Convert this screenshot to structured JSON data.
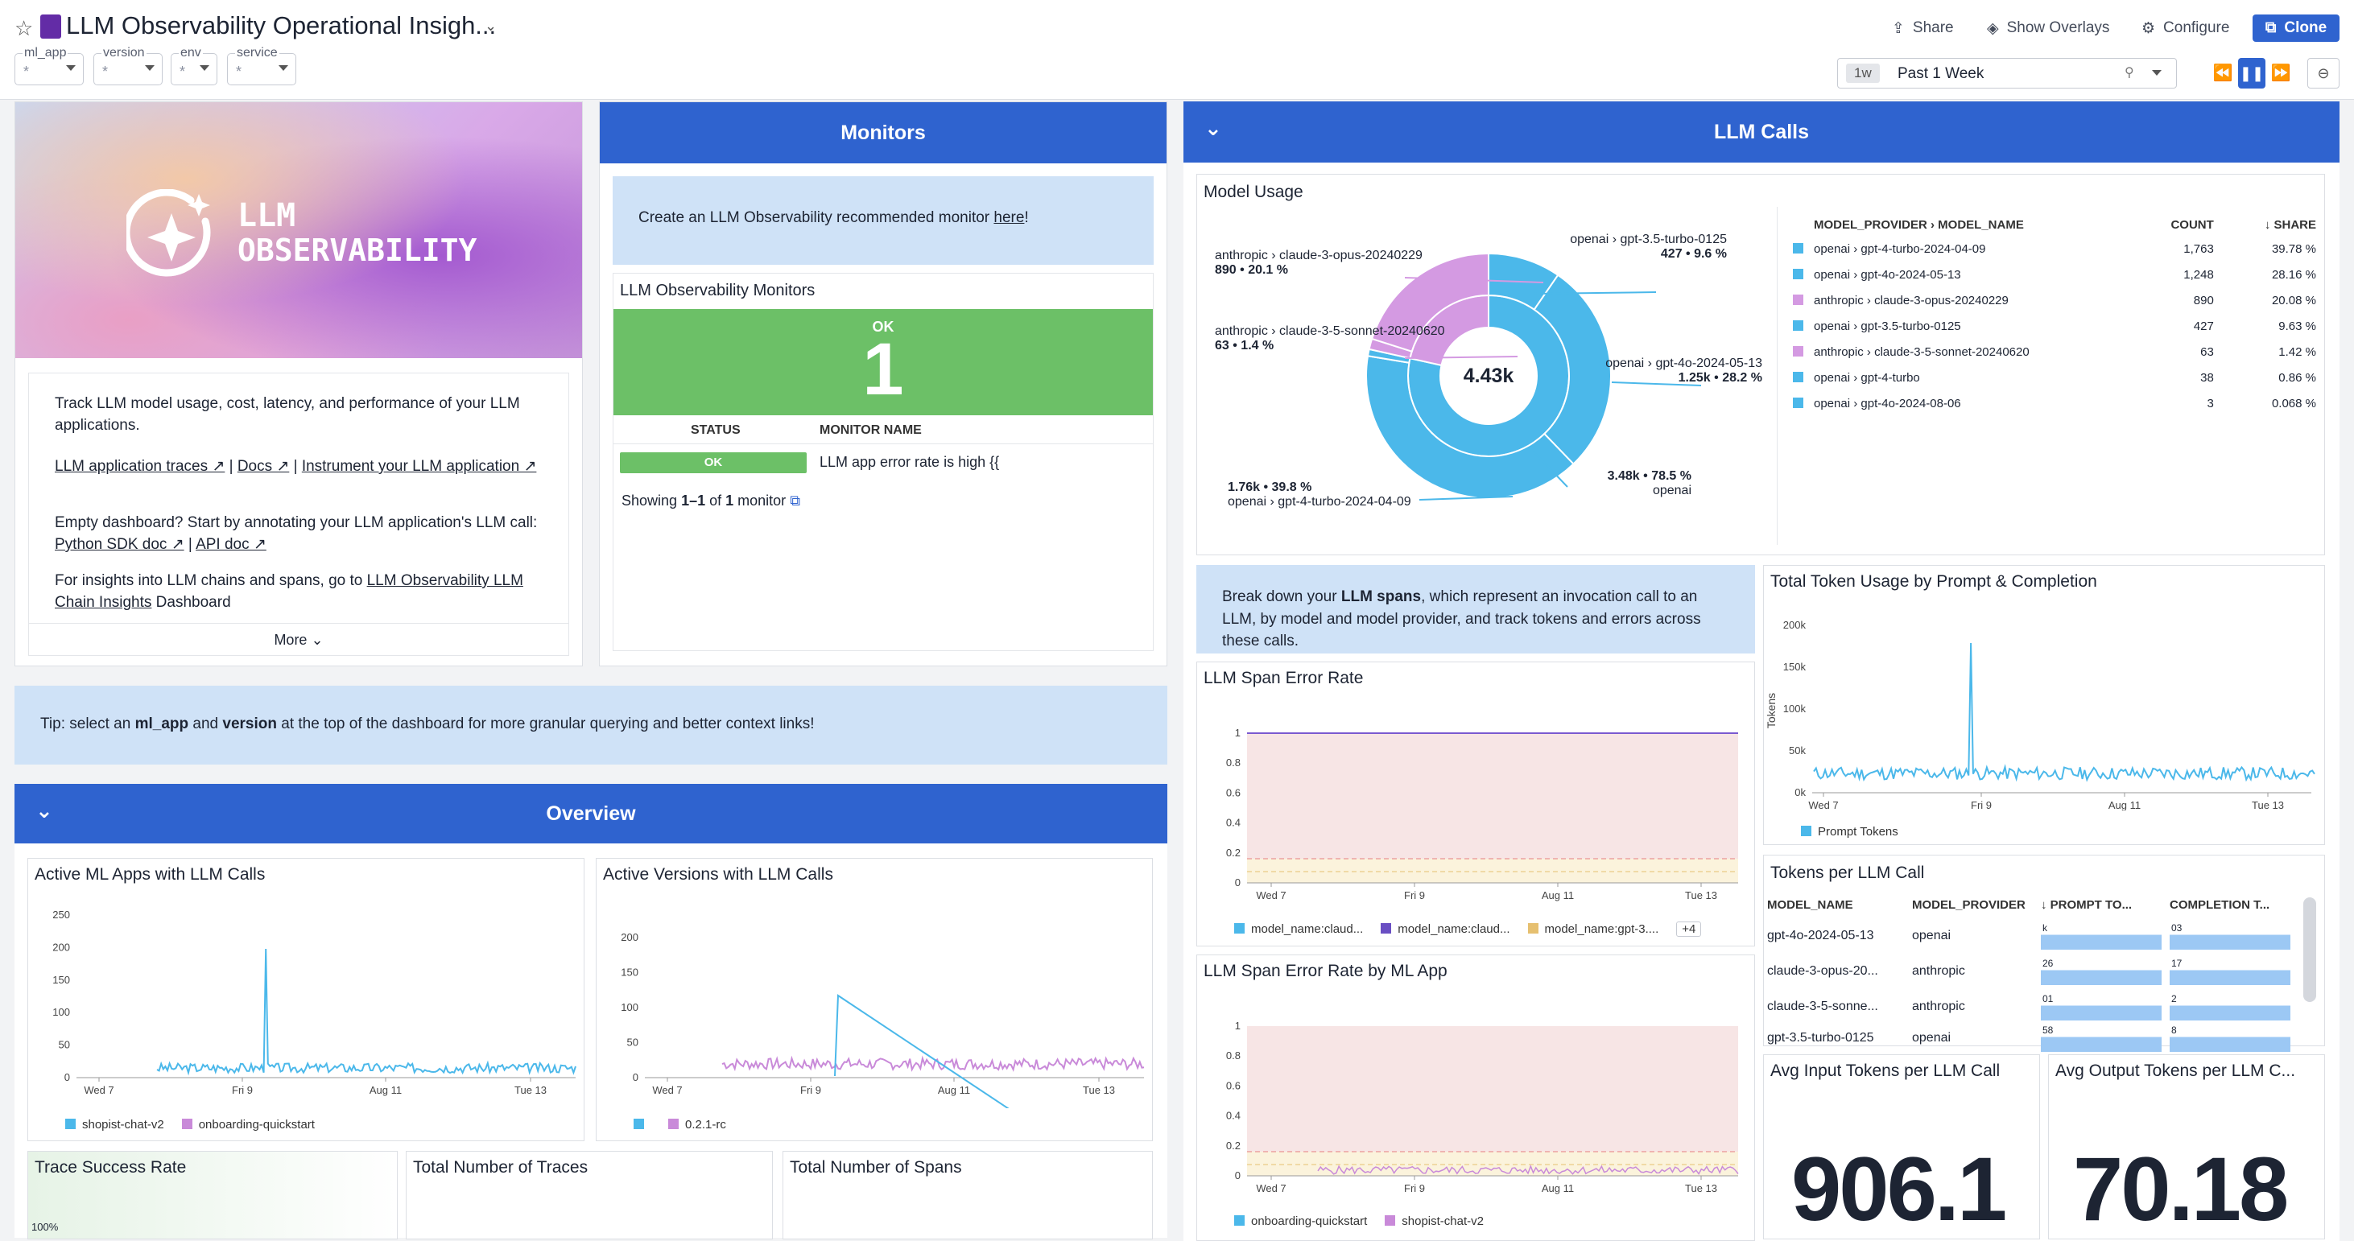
{
  "header": {
    "title": "LLM Observability Operational Insigh...",
    "vars": [
      {
        "label": "ml_app",
        "value": "*"
      },
      {
        "label": "version",
        "value": "*"
      },
      {
        "label": "env",
        "value": "*"
      },
      {
        "label": "service",
        "value": "*"
      }
    ],
    "share": "Share",
    "overlays": "Show Overlays",
    "configure": "Configure",
    "clone": "Clone",
    "time_badge": "1w",
    "time_label": "Past 1 Week"
  },
  "hero": {
    "logo_line1": "LLM",
    "logo_line2": "OBSERVABILITY",
    "intro": "Track LLM model usage, cost, latency, and performance of your LLM applications.",
    "link_traces": "LLM application traces ↗",
    "sep1": " | ",
    "link_docs": "Docs ↗",
    "sep2": " | ",
    "link_instrument": "Instrument your LLM application ↗",
    "empty_text": "Empty dashboard? Start by annotating your LLM application's LLM call: ",
    "link_python": "Python SDK doc ↗",
    "sep3": " | ",
    "link_api": "API doc ↗",
    "insights_text": "For insights into LLM chains and spans, go to ",
    "link_insights": "LLM Observability LLM Chain Insights",
    "insights_tail": " Dashboard",
    "more": "More"
  },
  "monitors": {
    "title": "Monitors",
    "note_text": "Create an LLM Observability recommended monitor ",
    "note_link": "here",
    "note_tail": "!",
    "subtitle": "LLM Observability Monitors",
    "ok_label": "OK",
    "ok_count": "1",
    "col_status": "STATUS",
    "col_name": "MONITOR NAME",
    "row_status": "OK",
    "row_name": "LLM app error rate is high {{",
    "showing_a": "Showing ",
    "showing_b": "1–1",
    "showing_c": " of ",
    "showing_d": "1",
    "showing_e": " monitor"
  },
  "tip": {
    "a": "Tip: select an ",
    "b": "ml_app",
    "c": " and ",
    "d": "version",
    "e": " at the top of the dashboard for more granular querying and better context links!"
  },
  "overview": {
    "title": "Overview"
  },
  "llm_calls": {
    "title": "LLM Calls"
  },
  "model_usage": {
    "title": "Model Usage",
    "center": "4.43k",
    "labels": [
      {
        "name": "anthropic › claude-3-opus-20240229",
        "val": "890 • 20.1 %"
      },
      {
        "name": "anthropic › claude-3-5-sonnet-20240620",
        "val": "63 • 1.4 %"
      },
      {
        "name": "openai › gpt-3.5-turbo-0125",
        "val": "427 • 9.6 %"
      },
      {
        "name": "openai › gpt-4o-2024-05-13",
        "val": "1.25k • 28.2 %"
      },
      {
        "name": "openai › gpt-4-turbo-2024-04-09",
        "val": "1.76k • 39.8 %"
      },
      {
        "name": "openai",
        "val": "3.48k • 78.5 %"
      }
    ],
    "table_headers": [
      "MODEL_PROVIDER › MODEL_NAME",
      "COUNT",
      "SHARE"
    ],
    "rows": [
      {
        "p": "openai",
        "m": "gpt-4-turbo-2024-04-09",
        "c": "1,763",
        "s": "39.78 %",
        "col": "#4bb8ea"
      },
      {
        "p": "openai",
        "m": "gpt-4o-2024-05-13",
        "c": "1,248",
        "s": "28.16 %",
        "col": "#4bb8ea"
      },
      {
        "p": "anthropic",
        "m": "claude-3-opus-20240229",
        "c": "890",
        "s": "20.08 %",
        "col": "#d49ae2"
      },
      {
        "p": "openai",
        "m": "gpt-3.5-turbo-0125",
        "c": "427",
        "s": "9.63 %",
        "col": "#4bb8ea"
      },
      {
        "p": "anthropic",
        "m": "claude-3-5-sonnet-20240620",
        "c": "63",
        "s": "1.42 %",
        "col": "#d49ae2"
      },
      {
        "p": "openai",
        "m": "gpt-4-turbo",
        "c": "38",
        "s": "0.86 %",
        "col": "#4bb8ea"
      },
      {
        "p": "openai",
        "m": "gpt-4o-2024-08-06",
        "c": "3",
        "s": "0.068 %",
        "col": "#4bb8ea"
      }
    ]
  },
  "breakdown": {
    "a": "Break down your ",
    "b": "LLM spans",
    "c": ", which represent an invocation call to an LLM, by model and model provider, and track tokens and errors across these calls."
  },
  "x_ticks": [
    "Wed 7",
    "Fri 9",
    "Aug 11",
    "Tue 13"
  ],
  "token_usage": {
    "title": "Total Token Usage by Prompt & Completion",
    "y_ticks": [
      "200k",
      "150k",
      "100k",
      "50k",
      "0k"
    ],
    "ylabel": "Tokens",
    "legend": "Prompt Tokens"
  },
  "span_error": {
    "title": "LLM Span Error Rate",
    "y_ticks": [
      "1",
      "0.8",
      "0.6",
      "0.4",
      "0.2",
      "0"
    ],
    "legend": [
      "model_name:claud...",
      "model_name:claud...",
      "model_name:gpt-3...."
    ],
    "more": "+4"
  },
  "span_error_app": {
    "title": "LLM Span Error Rate by ML App",
    "y_ticks": [
      "1",
      "0.8",
      "0.6",
      "0.4",
      "0.2",
      "0"
    ],
    "legend": [
      "onboarding-quickstart",
      "shopist-chat-v2"
    ]
  },
  "tokens_per_call": {
    "title": "Tokens per LLM Call",
    "headers": [
      "MODEL_NAME",
      "MODEL_PROVIDER",
      "PROMPT TO...",
      "COMPLETION T..."
    ],
    "rows": [
      {
        "m": "gpt-4o-2024-05-13",
        "p": "openai",
        "a": "k",
        "b": "03"
      },
      {
        "m": "claude-3-opus-20...",
        "p": "anthropic",
        "a": "26",
        "b": "17"
      },
      {
        "m": "claude-3-5-sonne...",
        "p": "anthropic",
        "a": "01",
        "b": "2"
      },
      {
        "m": "gpt-3.5-turbo-0125",
        "p": "openai",
        "a": "58",
        "b": "8"
      }
    ]
  },
  "active_apps": {
    "title": "Active ML Apps with LLM Calls",
    "y_ticks": [
      "250",
      "200",
      "150",
      "100",
      "50",
      "0"
    ],
    "legend": [
      "shopist-chat-v2",
      "onboarding-quickstart"
    ]
  },
  "active_versions": {
    "title": "Active Versions with LLM Calls",
    "y_ticks": [
      "200",
      "150",
      "100",
      "50",
      "0"
    ],
    "legend": [
      "",
      "0.2.1-rc"
    ]
  },
  "bottom": {
    "trace_success": "Trace Success Rate",
    "trace_pct": "100%",
    "total_traces": "Total Number of Traces",
    "total_spans": "Total Number of Spans"
  },
  "avg_in": {
    "title": "Avg Input Tokens per LLM Call",
    "value": "906.1"
  },
  "avg_out": {
    "title": "Avg Output Tokens per LLM C...",
    "value": "70.18"
  },
  "colors": {
    "blue": "#2f63cf",
    "ok": "#6cc067",
    "series_blue": "#4bb8ea",
    "series_purple": "#c98ad9",
    "error_band": "#f7e5e5"
  }
}
